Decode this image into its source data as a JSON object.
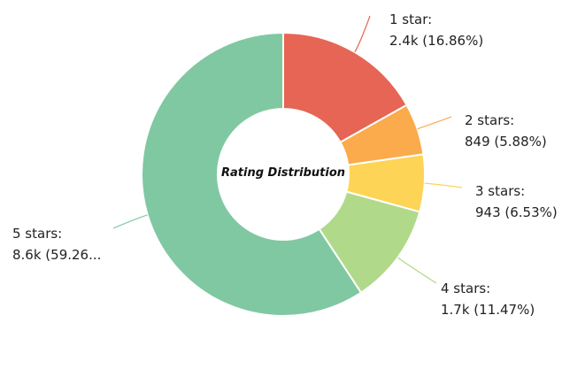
{
  "chart_data": {
    "type": "pie",
    "title": "Rating Distribution",
    "slices": [
      {
        "label": "1 star:",
        "value_text": "2.4k (16.86%)",
        "percent": 16.86,
        "color": "#e66554"
      },
      {
        "label": "2 stars:",
        "value_text": "849 (5.88%)",
        "percent": 5.88,
        "color": "#fbaa4c"
      },
      {
        "label": "3 stars:",
        "value_text": "943 (6.53%)",
        "percent": 6.53,
        "color": "#fdd455"
      },
      {
        "label": "4 stars:",
        "value_text": "1.7k (11.47%)",
        "percent": 11.47,
        "color": "#b1d98a"
      },
      {
        "label": "5 stars:",
        "value_text": "8.6k (59.26...",
        "percent": 59.26,
        "color": "#80c8a2"
      }
    ]
  }
}
